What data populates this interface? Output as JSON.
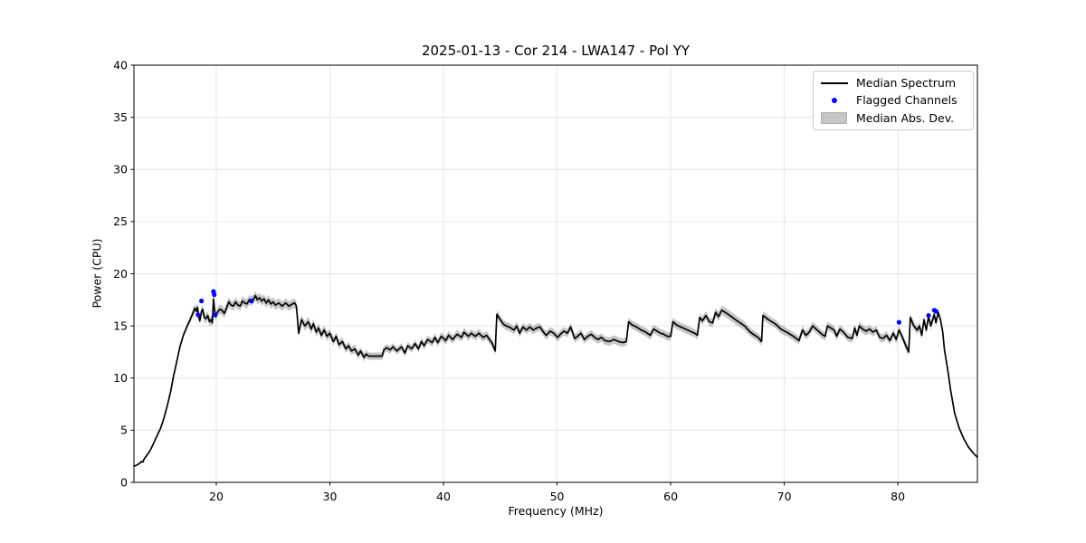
{
  "figure": {
    "background": "#ffffff"
  },
  "chart_data": {
    "type": "line",
    "title": "2025-01-13 - Cor 214 - LWA147 - Pol YY",
    "xlabel": "Frequency (MHz)",
    "ylabel": "Power (CPU)",
    "xlim": [
      12.75,
      87.0
    ],
    "ylim": [
      0,
      40
    ],
    "xticks": [
      20,
      30,
      40,
      50,
      60,
      70,
      80
    ],
    "yticks": [
      0,
      5,
      10,
      15,
      20,
      25,
      30,
      35,
      40
    ],
    "grid": true,
    "legend": {
      "position": "upper right",
      "items": [
        {
          "label": "Median Spectrum",
          "type": "line",
          "color": "#000000"
        },
        {
          "label": "Flagged Channels",
          "type": "dot",
          "color": "#0000ff"
        },
        {
          "label": "Median Abs. Dev.",
          "type": "patch",
          "color": "#c6c6c6"
        }
      ]
    },
    "style": {
      "line_color": "#000000",
      "line_width": 1.7,
      "flagged_color": "#0000ff",
      "flagged_marker_radius": 2.6,
      "band_color": "#808080",
      "band_alpha": 0.45,
      "grid_color": "#e5e5e5",
      "spine_color": "#000000",
      "text_color": "#000000"
    },
    "median_spectrum_points_freq_power_maddev": [
      [
        12.75,
        1.55,
        0.05
      ],
      [
        13.0,
        1.65,
        0.06
      ],
      [
        13.2,
        1.8,
        0.08
      ],
      [
        13.45,
        2.0,
        0.08
      ],
      [
        13.55,
        1.95,
        0.1
      ],
      [
        13.65,
        2.25,
        0.1
      ],
      [
        13.9,
        2.6,
        0.1
      ],
      [
        14.2,
        3.1,
        0.1
      ],
      [
        14.5,
        3.8,
        0.1
      ],
      [
        14.8,
        4.5,
        0.1
      ],
      [
        15.1,
        5.2,
        0.12
      ],
      [
        15.4,
        6.2,
        0.12
      ],
      [
        15.7,
        7.4,
        0.12
      ],
      [
        16.0,
        8.8,
        0.15
      ],
      [
        16.2,
        10.0,
        0.15
      ],
      [
        16.5,
        11.5,
        0.15
      ],
      [
        16.8,
        13.0,
        0.18
      ],
      [
        17.1,
        14.1,
        0.2
      ],
      [
        17.4,
        14.9,
        0.25
      ],
      [
        17.7,
        15.6,
        0.3
      ],
      [
        17.9,
        16.1,
        0.35
      ],
      [
        18.1,
        16.7,
        0.4
      ],
      [
        18.25,
        16.4,
        0.4
      ],
      [
        18.35,
        16.8,
        0.4
      ],
      [
        18.45,
        15.9,
        0.4
      ],
      [
        18.55,
        15.5,
        0.4
      ],
      [
        18.7,
        16.4,
        0.4
      ],
      [
        18.8,
        16.6,
        0.42
      ],
      [
        18.95,
        15.8,
        0.45
      ],
      [
        19.1,
        15.7,
        0.45
      ],
      [
        19.25,
        16.0,
        0.45
      ],
      [
        19.4,
        15.4,
        0.45
      ],
      [
        19.55,
        15.6,
        0.45
      ],
      [
        19.65,
        15.3,
        0.45
      ],
      [
        19.75,
        17.6,
        0.45
      ],
      [
        19.85,
        16.5,
        0.45
      ],
      [
        19.95,
        15.9,
        0.45
      ],
      [
        20.1,
        16.3,
        0.45
      ],
      [
        20.3,
        16.6,
        0.45
      ],
      [
        20.5,
        16.5,
        0.45
      ],
      [
        20.7,
        16.2,
        0.45
      ],
      [
        20.9,
        16.7,
        0.45
      ],
      [
        21.1,
        17.3,
        0.45
      ],
      [
        21.3,
        17.0,
        0.45
      ],
      [
        21.5,
        16.9,
        0.45
      ],
      [
        21.7,
        17.3,
        0.45
      ],
      [
        21.9,
        17.0,
        0.45
      ],
      [
        22.1,
        16.9,
        0.45
      ],
      [
        22.3,
        17.4,
        0.45
      ],
      [
        22.5,
        17.2,
        0.45
      ],
      [
        22.7,
        17.1,
        0.45
      ],
      [
        22.9,
        17.5,
        0.45
      ],
      [
        23.1,
        17.4,
        0.45
      ],
      [
        23.3,
        17.6,
        0.45
      ],
      [
        23.45,
        17.9,
        0.45
      ],
      [
        23.6,
        17.5,
        0.45
      ],
      [
        23.8,
        17.7,
        0.45
      ],
      [
        24.0,
        17.4,
        0.45
      ],
      [
        24.2,
        17.6,
        0.45
      ],
      [
        24.4,
        17.2,
        0.45
      ],
      [
        24.6,
        17.5,
        0.45
      ],
      [
        24.8,
        17.1,
        0.45
      ],
      [
        25.0,
        17.3,
        0.45
      ],
      [
        25.2,
        17.0,
        0.45
      ],
      [
        25.5,
        17.2,
        0.45
      ],
      [
        25.8,
        16.9,
        0.45
      ],
      [
        26.1,
        17.2,
        0.45
      ],
      [
        26.4,
        16.9,
        0.45
      ],
      [
        26.7,
        17.1,
        0.45
      ],
      [
        26.9,
        17.2,
        0.45
      ],
      [
        27.05,
        16.9,
        0.45
      ],
      [
        27.25,
        14.3,
        0.45
      ],
      [
        27.5,
        15.6,
        0.45
      ],
      [
        27.8,
        15.0,
        0.45
      ],
      [
        28.1,
        15.4,
        0.45
      ],
      [
        28.35,
        14.7,
        0.45
      ],
      [
        28.55,
        15.2,
        0.45
      ],
      [
        28.8,
        14.4,
        0.45
      ],
      [
        29.0,
        14.8,
        0.45
      ],
      [
        29.25,
        14.1,
        0.45
      ],
      [
        29.5,
        14.6,
        0.45
      ],
      [
        29.75,
        14.0,
        0.45
      ],
      [
        30.0,
        14.3,
        0.42
      ],
      [
        30.3,
        13.5,
        0.42
      ],
      [
        30.55,
        14.0,
        0.42
      ],
      [
        30.8,
        13.2,
        0.42
      ],
      [
        31.1,
        13.5,
        0.4
      ],
      [
        31.4,
        12.8,
        0.4
      ],
      [
        31.65,
        13.1,
        0.4
      ],
      [
        31.9,
        12.6,
        0.4
      ],
      [
        32.2,
        12.8,
        0.4
      ],
      [
        32.5,
        12.2,
        0.38
      ],
      [
        32.7,
        12.6,
        0.38
      ],
      [
        33.0,
        12.0,
        0.38
      ],
      [
        33.2,
        12.3,
        0.38
      ],
      [
        33.4,
        12.1,
        0.35
      ],
      [
        34.0,
        12.1,
        0.35
      ],
      [
        34.6,
        12.1,
        0.35
      ],
      [
        34.75,
        12.7,
        0.35
      ],
      [
        35.0,
        12.9,
        0.35
      ],
      [
        35.3,
        12.7,
        0.35
      ],
      [
        35.55,
        13.0,
        0.35
      ],
      [
        35.9,
        12.6,
        0.35
      ],
      [
        36.3,
        13.0,
        0.35
      ],
      [
        36.6,
        12.4,
        0.35
      ],
      [
        36.85,
        13.1,
        0.35
      ],
      [
        37.2,
        12.8,
        0.35
      ],
      [
        37.5,
        13.3,
        0.35
      ],
      [
        37.8,
        12.8,
        0.35
      ],
      [
        38.05,
        13.5,
        0.38
      ],
      [
        38.3,
        13.1,
        0.38
      ],
      [
        38.6,
        13.7,
        0.38
      ],
      [
        39.0,
        13.4,
        0.38
      ],
      [
        39.25,
        13.9,
        0.38
      ],
      [
        39.5,
        13.4,
        0.38
      ],
      [
        39.8,
        14.0,
        0.4
      ],
      [
        40.2,
        13.6,
        0.4
      ],
      [
        40.45,
        14.1,
        0.4
      ],
      [
        40.8,
        13.7,
        0.4
      ],
      [
        41.2,
        14.2,
        0.4
      ],
      [
        41.6,
        13.9,
        0.4
      ],
      [
        41.8,
        14.4,
        0.4
      ],
      [
        42.2,
        14.0,
        0.4
      ],
      [
        42.45,
        14.3,
        0.4
      ],
      [
        42.8,
        14.0,
        0.4
      ],
      [
        43.1,
        14.3,
        0.4
      ],
      [
        43.5,
        13.9,
        0.4
      ],
      [
        43.8,
        14.1,
        0.4
      ],
      [
        44.05,
        13.7,
        0.4
      ],
      [
        44.3,
        13.3,
        0.4
      ],
      [
        44.55,
        12.6,
        0.4
      ],
      [
        44.7,
        16.1,
        0.4
      ],
      [
        45.0,
        15.6,
        0.4
      ],
      [
        45.25,
        15.2,
        0.4
      ],
      [
        45.5,
        15.0,
        0.4
      ],
      [
        45.8,
        14.9,
        0.4
      ],
      [
        46.2,
        14.6,
        0.4
      ],
      [
        46.45,
        15.0,
        0.4
      ],
      [
        46.7,
        14.3,
        0.4
      ],
      [
        47.0,
        14.9,
        0.4
      ],
      [
        47.3,
        14.6,
        0.4
      ],
      [
        47.6,
        14.9,
        0.4
      ],
      [
        47.9,
        14.6,
        0.4
      ],
      [
        48.2,
        14.8,
        0.4
      ],
      [
        48.5,
        14.9,
        0.4
      ],
      [
        48.8,
        14.4,
        0.4
      ],
      [
        49.05,
        14.1,
        0.4
      ],
      [
        49.4,
        14.5,
        0.4
      ],
      [
        49.7,
        14.3,
        0.4
      ],
      [
        50.05,
        13.9,
        0.4
      ],
      [
        50.3,
        14.2,
        0.4
      ],
      [
        50.6,
        14.5,
        0.4
      ],
      [
        50.9,
        14.3,
        0.4
      ],
      [
        51.2,
        14.9,
        0.4
      ],
      [
        51.55,
        13.8,
        0.4
      ],
      [
        51.8,
        14.0,
        0.4
      ],
      [
        52.1,
        14.3,
        0.4
      ],
      [
        52.4,
        13.7,
        0.4
      ],
      [
        52.7,
        14.0,
        0.4
      ],
      [
        53.0,
        14.2,
        0.4
      ],
      [
        53.3,
        13.9,
        0.4
      ],
      [
        53.6,
        13.7,
        0.4
      ],
      [
        53.9,
        13.9,
        0.4
      ],
      [
        54.2,
        13.6,
        0.4
      ],
      [
        54.6,
        13.5,
        0.4
      ],
      [
        55.0,
        13.7,
        0.4
      ],
      [
        55.4,
        13.5,
        0.4
      ],
      [
        55.8,
        13.4,
        0.4
      ],
      [
        56.1,
        13.5,
        0.4
      ],
      [
        56.3,
        15.4,
        0.4
      ],
      [
        56.6,
        15.1,
        0.4
      ],
      [
        57.0,
        14.9,
        0.4
      ],
      [
        57.4,
        14.6,
        0.4
      ],
      [
        57.8,
        14.4,
        0.4
      ],
      [
        58.2,
        14.1,
        0.4
      ],
      [
        58.5,
        14.7,
        0.4
      ],
      [
        58.8,
        14.5,
        0.4
      ],
      [
        59.1,
        14.3,
        0.4
      ],
      [
        59.4,
        14.2,
        0.4
      ],
      [
        59.7,
        14.0,
        0.4
      ],
      [
        60.0,
        14.0,
        0.4
      ],
      [
        60.2,
        15.4,
        0.4
      ],
      [
        60.5,
        15.1,
        0.4
      ],
      [
        60.9,
        14.9,
        0.4
      ],
      [
        61.3,
        14.7,
        0.4
      ],
      [
        61.7,
        14.5,
        0.4
      ],
      [
        62.1,
        14.3,
        0.4
      ],
      [
        62.35,
        14.1,
        0.4
      ],
      [
        62.55,
        15.8,
        0.4
      ],
      [
        62.8,
        15.5,
        0.4
      ],
      [
        63.1,
        16.0,
        0.42
      ],
      [
        63.4,
        15.4,
        0.42
      ],
      [
        63.7,
        15.3,
        0.42
      ],
      [
        63.95,
        16.3,
        0.45
      ],
      [
        64.2,
        15.9,
        0.45
      ],
      [
        64.5,
        16.5,
        0.45
      ],
      [
        64.8,
        16.3,
        0.45
      ],
      [
        65.2,
        16.0,
        0.45
      ],
      [
        65.7,
        15.6,
        0.45
      ],
      [
        66.1,
        15.3,
        0.42
      ],
      [
        66.5,
        15.0,
        0.42
      ],
      [
        67.0,
        14.4,
        0.4
      ],
      [
        67.4,
        14.1,
        0.4
      ],
      [
        67.7,
        13.9,
        0.4
      ],
      [
        68.0,
        13.5,
        0.4
      ],
      [
        68.12,
        16.0,
        0.4
      ],
      [
        68.6,
        15.6,
        0.4
      ],
      [
        69.2,
        15.2,
        0.4
      ],
      [
        69.7,
        14.7,
        0.4
      ],
      [
        70.2,
        14.4,
        0.4
      ],
      [
        70.8,
        14.0,
        0.4
      ],
      [
        71.3,
        13.6,
        0.4
      ],
      [
        71.6,
        14.6,
        0.4
      ],
      [
        71.9,
        14.1,
        0.4
      ],
      [
        72.2,
        14.4,
        0.4
      ],
      [
        72.5,
        15.0,
        0.4
      ],
      [
        72.9,
        14.6,
        0.4
      ],
      [
        73.3,
        14.2,
        0.4
      ],
      [
        73.6,
        14.0,
        0.4
      ],
      [
        73.8,
        15.0,
        0.4
      ],
      [
        74.1,
        14.8,
        0.4
      ],
      [
        74.4,
        14.6,
        0.4
      ],
      [
        74.6,
        14.0,
        0.4
      ],
      [
        74.9,
        14.7,
        0.4
      ],
      [
        75.2,
        14.4,
        0.4
      ],
      [
        75.6,
        13.9,
        0.4
      ],
      [
        76.0,
        13.8,
        0.4
      ],
      [
        76.2,
        14.8,
        0.4
      ],
      [
        76.4,
        14.1,
        0.4
      ],
      [
        76.6,
        15.0,
        0.4
      ],
      [
        76.9,
        14.7,
        0.4
      ],
      [
        77.2,
        14.5,
        0.4
      ],
      [
        77.5,
        14.7,
        0.4
      ],
      [
        77.8,
        14.4,
        0.4
      ],
      [
        78.1,
        14.6,
        0.4
      ],
      [
        78.4,
        13.9,
        0.4
      ],
      [
        78.7,
        13.8,
        0.4
      ],
      [
        79.0,
        14.1,
        0.4
      ],
      [
        79.3,
        13.6,
        0.4
      ],
      [
        79.6,
        14.3,
        0.4
      ],
      [
        79.85,
        13.7,
        0.4
      ],
      [
        80.1,
        14.6,
        0.4
      ],
      [
        80.4,
        13.9,
        0.4
      ],
      [
        80.7,
        13.1,
        0.4
      ],
      [
        80.95,
        12.5,
        0.4
      ],
      [
        81.1,
        15.8,
        0.4
      ],
      [
        81.4,
        15.0,
        0.4
      ],
      [
        81.7,
        14.6,
        0.4
      ],
      [
        81.9,
        15.0,
        0.4
      ],
      [
        82.1,
        14.1,
        0.4
      ],
      [
        82.3,
        15.6,
        0.4
      ],
      [
        82.5,
        14.6,
        0.4
      ],
      [
        82.7,
        15.9,
        0.4
      ],
      [
        82.9,
        15.0,
        0.4
      ],
      [
        83.2,
        16.1,
        0.4
      ],
      [
        83.35,
        15.3,
        0.4
      ],
      [
        83.55,
        16.3,
        0.35
      ],
      [
        83.75,
        15.6,
        0.3
      ],
      [
        83.95,
        14.4,
        0.2
      ],
      [
        84.1,
        12.7,
        0.15
      ],
      [
        84.4,
        10.7,
        0.1
      ],
      [
        84.65,
        8.8,
        0.08
      ],
      [
        85.0,
        6.6,
        0.06
      ],
      [
        85.4,
        5.2,
        0.05
      ],
      [
        85.8,
        4.2,
        0.05
      ],
      [
        86.2,
        3.4,
        0.05
      ],
      [
        86.6,
        2.85,
        0.05
      ],
      [
        87.0,
        2.4,
        0.05
      ]
    ],
    "flagged_channels_points": [
      [
        18.4,
        16.05
      ],
      [
        18.7,
        17.4
      ],
      [
        19.75,
        18.3
      ],
      [
        19.82,
        18.0
      ],
      [
        19.88,
        16.05
      ],
      [
        23.1,
        17.4
      ],
      [
        80.1,
        15.35
      ],
      [
        82.7,
        16.0
      ],
      [
        83.2,
        16.5
      ],
      [
        83.35,
        16.4
      ]
    ]
  }
}
